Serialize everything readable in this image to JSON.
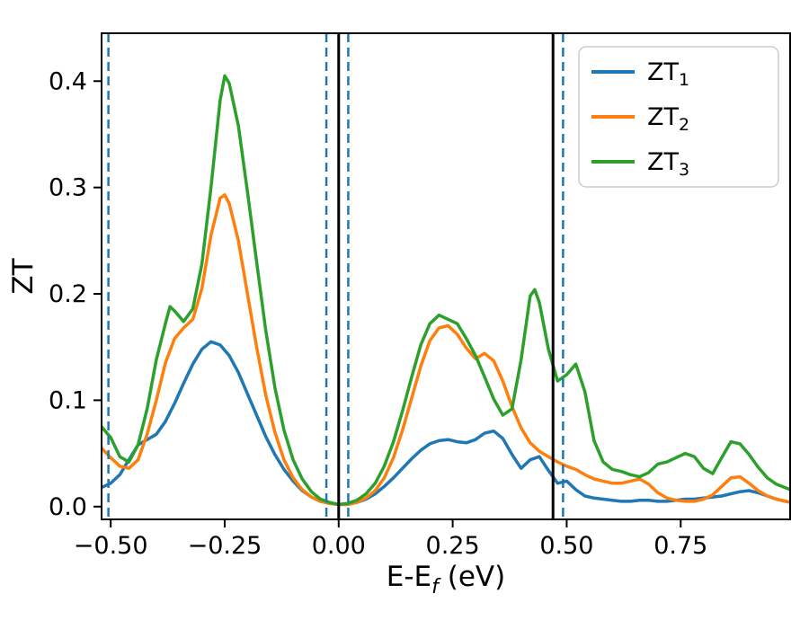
{
  "figure": {
    "background": "#ffffff"
  },
  "chart_data": {
    "type": "line",
    "title": "",
    "xlabel": "E-E_f (eV)",
    "xlabel_parts": {
      "prefix": "E-E",
      "subscript": "f",
      "suffix": " (eV)"
    },
    "ylabel": "ZT",
    "xlim": [
      -0.52,
      0.99
    ],
    "ylim": [
      -0.012,
      0.445
    ],
    "grid": false,
    "x_ticks": [
      -0.5,
      -0.25,
      0.0,
      0.25,
      0.5,
      0.75
    ],
    "x_tick_labels": [
      "−0.50",
      "−0.25",
      "0.00",
      "0.25",
      "0.50",
      "0.75"
    ],
    "y_ticks": [
      0.0,
      0.1,
      0.2,
      0.3,
      0.4
    ],
    "y_tick_labels": [
      "0.0",
      "0.1",
      "0.2",
      "0.3",
      "0.4"
    ],
    "legend": {
      "position": "upper right",
      "entries": [
        {
          "base": "ZT",
          "subscript": "1",
          "display": "ZT₁",
          "color": "#1f77b4"
        },
        {
          "base": "ZT",
          "subscript": "2",
          "display": "ZT₂",
          "color": "#ff7f0e"
        },
        {
          "base": "ZT",
          "subscript": "3",
          "display": "ZT₃",
          "color": "#2ca02c"
        }
      ]
    },
    "vlines": [
      {
        "x": 0.0,
        "color": "#000000",
        "style": "solid",
        "width": 3
      },
      {
        "x": 0.47,
        "color": "#000000",
        "style": "solid",
        "width": 3
      },
      {
        "x": -0.505,
        "color": "#1f77b4",
        "style": "dashed",
        "width": 2.5
      },
      {
        "x": -0.027,
        "color": "#1f77b4",
        "style": "dashed",
        "width": 2.5
      },
      {
        "x": 0.021,
        "color": "#1f77b4",
        "style": "dashed",
        "width": 2.5
      },
      {
        "x": 0.492,
        "color": "#1f77b4",
        "style": "dashed",
        "width": 2.5
      }
    ],
    "series": [
      {
        "name": "ZT1",
        "color": "#1f77b4",
        "points": [
          [
            -0.52,
            0.018
          ],
          [
            -0.5,
            0.022
          ],
          [
            -0.48,
            0.03
          ],
          [
            -0.46,
            0.044
          ],
          [
            -0.44,
            0.058
          ],
          [
            -0.42,
            0.063
          ],
          [
            -0.4,
            0.068
          ],
          [
            -0.38,
            0.08
          ],
          [
            -0.36,
            0.097
          ],
          [
            -0.34,
            0.116
          ],
          [
            -0.32,
            0.134
          ],
          [
            -0.3,
            0.148
          ],
          [
            -0.28,
            0.155
          ],
          [
            -0.26,
            0.152
          ],
          [
            -0.24,
            0.142
          ],
          [
            -0.22,
            0.126
          ],
          [
            -0.2,
            0.106
          ],
          [
            -0.18,
            0.086
          ],
          [
            -0.16,
            0.066
          ],
          [
            -0.14,
            0.049
          ],
          [
            -0.12,
            0.035
          ],
          [
            -0.1,
            0.024
          ],
          [
            -0.08,
            0.015
          ],
          [
            -0.06,
            0.009
          ],
          [
            -0.04,
            0.005
          ],
          [
            -0.02,
            0.003
          ],
          [
            0.0,
            0.002
          ],
          [
            0.02,
            0.002
          ],
          [
            0.04,
            0.004
          ],
          [
            0.06,
            0.007
          ],
          [
            0.08,
            0.012
          ],
          [
            0.1,
            0.019
          ],
          [
            0.12,
            0.027
          ],
          [
            0.14,
            0.036
          ],
          [
            0.16,
            0.045
          ],
          [
            0.18,
            0.053
          ],
          [
            0.2,
            0.059
          ],
          [
            0.22,
            0.062
          ],
          [
            0.24,
            0.063
          ],
          [
            0.26,
            0.061
          ],
          [
            0.28,
            0.06
          ],
          [
            0.3,
            0.063
          ],
          [
            0.32,
            0.069
          ],
          [
            0.34,
            0.071
          ],
          [
            0.36,
            0.064
          ],
          [
            0.38,
            0.049
          ],
          [
            0.4,
            0.036
          ],
          [
            0.42,
            0.044
          ],
          [
            0.44,
            0.047
          ],
          [
            0.46,
            0.034
          ],
          [
            0.48,
            0.022
          ],
          [
            0.5,
            0.024
          ],
          [
            0.52,
            0.016
          ],
          [
            0.54,
            0.01
          ],
          [
            0.56,
            0.008
          ],
          [
            0.58,
            0.007
          ],
          [
            0.6,
            0.006
          ],
          [
            0.62,
            0.005
          ],
          [
            0.64,
            0.005
          ],
          [
            0.66,
            0.006
          ],
          [
            0.68,
            0.006
          ],
          [
            0.7,
            0.005
          ],
          [
            0.72,
            0.005
          ],
          [
            0.74,
            0.006
          ],
          [
            0.76,
            0.007
          ],
          [
            0.78,
            0.007
          ],
          [
            0.8,
            0.008
          ],
          [
            0.82,
            0.009
          ],
          [
            0.84,
            0.01
          ],
          [
            0.86,
            0.012
          ],
          [
            0.88,
            0.014
          ],
          [
            0.9,
            0.015
          ],
          [
            0.92,
            0.013
          ],
          [
            0.94,
            0.01
          ],
          [
            0.96,
            0.007
          ],
          [
            0.99,
            0.004
          ]
        ]
      },
      {
        "name": "ZT2",
        "color": "#ff7f0e",
        "points": [
          [
            -0.52,
            0.055
          ],
          [
            -0.5,
            0.046
          ],
          [
            -0.48,
            0.038
          ],
          [
            -0.46,
            0.036
          ],
          [
            -0.44,
            0.044
          ],
          [
            -0.42,
            0.068
          ],
          [
            -0.4,
            0.1
          ],
          [
            -0.38,
            0.135
          ],
          [
            -0.36,
            0.158
          ],
          [
            -0.34,
            0.168
          ],
          [
            -0.32,
            0.176
          ],
          [
            -0.3,
            0.205
          ],
          [
            -0.28,
            0.255
          ],
          [
            -0.26,
            0.29
          ],
          [
            -0.25,
            0.293
          ],
          [
            -0.24,
            0.285
          ],
          [
            -0.22,
            0.25
          ],
          [
            -0.2,
            0.2
          ],
          [
            -0.18,
            0.15
          ],
          [
            -0.16,
            0.105
          ],
          [
            -0.14,
            0.07
          ],
          [
            -0.12,
            0.044
          ],
          [
            -0.1,
            0.027
          ],
          [
            -0.08,
            0.016
          ],
          [
            -0.06,
            0.009
          ],
          [
            -0.04,
            0.005
          ],
          [
            -0.02,
            0.003
          ],
          [
            0.0,
            0.002
          ],
          [
            0.02,
            0.002
          ],
          [
            0.04,
            0.004
          ],
          [
            0.06,
            0.008
          ],
          [
            0.08,
            0.015
          ],
          [
            0.1,
            0.027
          ],
          [
            0.12,
            0.046
          ],
          [
            0.14,
            0.072
          ],
          [
            0.16,
            0.102
          ],
          [
            0.18,
            0.132
          ],
          [
            0.2,
            0.156
          ],
          [
            0.22,
            0.168
          ],
          [
            0.24,
            0.17
          ],
          [
            0.26,
            0.162
          ],
          [
            0.28,
            0.149
          ],
          [
            0.3,
            0.139
          ],
          [
            0.32,
            0.144
          ],
          [
            0.34,
            0.137
          ],
          [
            0.36,
            0.118
          ],
          [
            0.38,
            0.094
          ],
          [
            0.4,
            0.074
          ],
          [
            0.42,
            0.06
          ],
          [
            0.44,
            0.052
          ],
          [
            0.46,
            0.047
          ],
          [
            0.48,
            0.042
          ],
          [
            0.5,
            0.038
          ],
          [
            0.52,
            0.035
          ],
          [
            0.54,
            0.03
          ],
          [
            0.56,
            0.026
          ],
          [
            0.58,
            0.024
          ],
          [
            0.6,
            0.022
          ],
          [
            0.62,
            0.022
          ],
          [
            0.64,
            0.024
          ],
          [
            0.66,
            0.026
          ],
          [
            0.68,
            0.021
          ],
          [
            0.7,
            0.013
          ],
          [
            0.72,
            0.008
          ],
          [
            0.74,
            0.006
          ],
          [
            0.76,
            0.005
          ],
          [
            0.78,
            0.005
          ],
          [
            0.8,
            0.007
          ],
          [
            0.82,
            0.011
          ],
          [
            0.84,
            0.019
          ],
          [
            0.86,
            0.027
          ],
          [
            0.88,
            0.028
          ],
          [
            0.9,
            0.022
          ],
          [
            0.92,
            0.015
          ],
          [
            0.94,
            0.01
          ],
          [
            0.96,
            0.007
          ],
          [
            0.99,
            0.004
          ]
        ]
      },
      {
        "name": "ZT3",
        "color": "#2ca02c",
        "points": [
          [
            -0.52,
            0.075
          ],
          [
            -0.5,
            0.065
          ],
          [
            -0.48,
            0.047
          ],
          [
            -0.46,
            0.042
          ],
          [
            -0.44,
            0.058
          ],
          [
            -0.42,
            0.092
          ],
          [
            -0.4,
            0.138
          ],
          [
            -0.38,
            0.172
          ],
          [
            -0.37,
            0.188
          ],
          [
            -0.36,
            0.184
          ],
          [
            -0.34,
            0.174
          ],
          [
            -0.32,
            0.186
          ],
          [
            -0.3,
            0.228
          ],
          [
            -0.28,
            0.3
          ],
          [
            -0.26,
            0.382
          ],
          [
            -0.25,
            0.405
          ],
          [
            -0.24,
            0.398
          ],
          [
            -0.22,
            0.358
          ],
          [
            -0.2,
            0.296
          ],
          [
            -0.18,
            0.23
          ],
          [
            -0.16,
            0.166
          ],
          [
            -0.14,
            0.112
          ],
          [
            -0.12,
            0.072
          ],
          [
            -0.1,
            0.044
          ],
          [
            -0.08,
            0.026
          ],
          [
            -0.06,
            0.014
          ],
          [
            -0.04,
            0.007
          ],
          [
            -0.02,
            0.004
          ],
          [
            0.0,
            0.002
          ],
          [
            0.02,
            0.003
          ],
          [
            0.04,
            0.006
          ],
          [
            0.06,
            0.012
          ],
          [
            0.08,
            0.022
          ],
          [
            0.1,
            0.038
          ],
          [
            0.12,
            0.061
          ],
          [
            0.14,
            0.09
          ],
          [
            0.16,
            0.122
          ],
          [
            0.18,
            0.152
          ],
          [
            0.2,
            0.172
          ],
          [
            0.22,
            0.18
          ],
          [
            0.24,
            0.176
          ],
          [
            0.26,
            0.172
          ],
          [
            0.28,
            0.158
          ],
          [
            0.3,
            0.142
          ],
          [
            0.32,
            0.122
          ],
          [
            0.34,
            0.101
          ],
          [
            0.36,
            0.086
          ],
          [
            0.38,
            0.092
          ],
          [
            0.4,
            0.138
          ],
          [
            0.42,
            0.198
          ],
          [
            0.43,
            0.204
          ],
          [
            0.44,
            0.192
          ],
          [
            0.46,
            0.148
          ],
          [
            0.48,
            0.118
          ],
          [
            0.5,
            0.124
          ],
          [
            0.52,
            0.134
          ],
          [
            0.54,
            0.108
          ],
          [
            0.56,
            0.062
          ],
          [
            0.58,
            0.042
          ],
          [
            0.6,
            0.035
          ],
          [
            0.62,
            0.033
          ],
          [
            0.64,
            0.03
          ],
          [
            0.66,
            0.028
          ],
          [
            0.68,
            0.032
          ],
          [
            0.7,
            0.04
          ],
          [
            0.72,
            0.042
          ],
          [
            0.74,
            0.046
          ],
          [
            0.76,
            0.05
          ],
          [
            0.78,
            0.047
          ],
          [
            0.8,
            0.036
          ],
          [
            0.82,
            0.031
          ],
          [
            0.84,
            0.046
          ],
          [
            0.86,
            0.061
          ],
          [
            0.88,
            0.059
          ],
          [
            0.9,
            0.049
          ],
          [
            0.92,
            0.037
          ],
          [
            0.94,
            0.027
          ],
          [
            0.96,
            0.021
          ],
          [
            0.99,
            0.016
          ]
        ]
      }
    ]
  }
}
